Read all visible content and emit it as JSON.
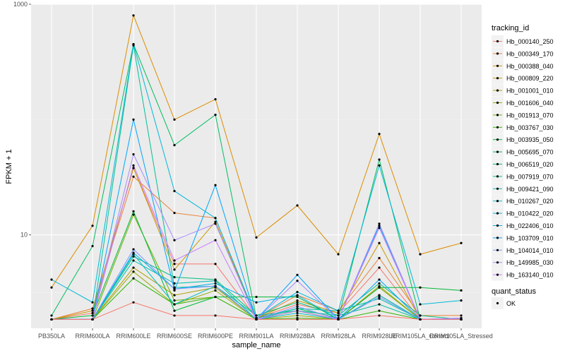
{
  "chart_data": {
    "type": "line",
    "title": "",
    "xlabel": "sample_name",
    "ylabel": "FPKM + 1",
    "y_scale": "log10",
    "ylim": [
      1.55,
      1000
    ],
    "y_ticks": [
      10,
      1000
    ],
    "y_tick_labels": [
      "10",
      "1000"
    ],
    "grid": true,
    "panel_background": "#ebebeb",
    "legend_position": "right",
    "categories": [
      "PB350LA",
      "RRIM600LA",
      "RRIM600LE",
      "RRIM600SE",
      "RRIM600PE",
      "RRIM901LA",
      "RRIM928BA",
      "RRIM928LA",
      "RRIM928LE",
      "RRIM105LA_Control",
      "RRIM105LA_Stressed"
    ],
    "legend": {
      "title": "tracking_id",
      "labels": [
        "Hb_000140_250",
        "Hb_000349_170",
        "Hb_000388_040",
        "Hb_000809_220",
        "Hb_001001_010",
        "Hb_001606_040",
        "Hb_001913_070",
        "Hb_003767_030",
        "Hb_003935_050",
        "Hb_005695_070",
        "Hb_006519_020",
        "Hb_007919_070",
        "Hb_009421_090",
        "Hb_010267_020",
        "Hb_010422_020",
        "Hb_022406_010",
        "Hb_103709_010",
        "Hb_104014_010",
        "Hb_149985_030",
        "Hb_163140_010"
      ],
      "colors": [
        "#F8766D",
        "#EC8239",
        "#DB8E00",
        "#C79800",
        "#AFA100",
        "#93AA00",
        "#6FB000",
        "#2FB600",
        "#00BA38",
        "#00BD5F",
        "#00BF7D",
        "#00C097",
        "#00C0AF",
        "#00BDC4",
        "#00B8D8",
        "#00B0EA",
        "#00A5FF",
        "#7997FF",
        "#A58AFF",
        "#C77CFF"
      ]
    },
    "shape_legend": {
      "title": "quant_status",
      "labels": [
        "OK"
      ]
    },
    "series": [
      {
        "name": "Hb_000140_250",
        "color": "#F8766D",
        "values": [
          1.85,
          2.1,
          38,
          5.6,
          5.6,
          1.9,
          2.5,
          2.1,
          5.2,
          1.85,
          1.85
        ]
      },
      {
        "name": "Hb_000349_170",
        "color": "#EC8239",
        "values": [
          1.85,
          2.3,
          32,
          15.5,
          14,
          1.9,
          3.0,
          2.2,
          6.3,
          2.0,
          2.0
        ]
      },
      {
        "name": "Hb_000388_040",
        "color": "#DB8E00",
        "values": [
          3.5,
          12,
          800,
          100,
          150,
          9.5,
          18,
          6.8,
          75,
          6.8,
          8.5
        ]
      },
      {
        "name": "Hb_000809_220",
        "color": "#C79800",
        "values": [
          1.85,
          2.2,
          38,
          5.0,
          13,
          1.9,
          2.7,
          2.1,
          8.5,
          1.85,
          1.85
        ]
      },
      {
        "name": "Hb_001001_010",
        "color": "#AFA100",
        "values": [
          1.85,
          1.85,
          5.2,
          3.0,
          3.5,
          1.85,
          2.2,
          1.85,
          3.6,
          1.85,
          1.85
        ]
      },
      {
        "name": "Hb_001606_040",
        "color": "#93AA00",
        "values": [
          1.85,
          1.85,
          4.8,
          2.5,
          3.3,
          1.85,
          2.0,
          1.85,
          3.0,
          1.85,
          1.85
        ]
      },
      {
        "name": "Hb_001913_070",
        "color": "#6FB000",
        "values": [
          1.85,
          1.85,
          15,
          2.7,
          2.9,
          1.85,
          2.2,
          1.85,
          3.5,
          1.85,
          1.85
        ]
      },
      {
        "name": "Hb_003767_030",
        "color": "#2FB600",
        "values": [
          1.85,
          1.85,
          4.2,
          2.5,
          2.9,
          1.85,
          1.9,
          1.85,
          2.2,
          1.85,
          1.85
        ]
      },
      {
        "name": "Hb_003935_050",
        "color": "#00BA38",
        "values": [
          1.85,
          2.0,
          16,
          2.2,
          2.9,
          2.9,
          2.9,
          1.85,
          3.5,
          3.5,
          3.3
        ]
      },
      {
        "name": "Hb_005695_070",
        "color": "#00BD5F",
        "values": [
          2.0,
          8.0,
          450,
          60,
          110,
          1.9,
          2.3,
          1.9,
          45,
          1.85,
          1.85
        ]
      },
      {
        "name": "Hb_006519_020",
        "color": "#00BF7D",
        "values": [
          1.85,
          1.85,
          6.5,
          4.3,
          4.1,
          2.0,
          2.6,
          2.0,
          3.8,
          2.0,
          1.85
        ]
      },
      {
        "name": "Hb_007919_070",
        "color": "#00C097",
        "values": [
          1.85,
          1.85,
          440,
          3.5,
          3.6,
          2.0,
          2.2,
          2.0,
          2.5,
          1.85,
          1.85
        ]
      },
      {
        "name": "Hb_009421_090",
        "color": "#00C0AF",
        "values": [
          1.85,
          1.85,
          6.0,
          3.8,
          4.0,
          1.85,
          2.3,
          2.2,
          2.8,
          1.85,
          1.85
        ]
      },
      {
        "name": "Hb_010267_020",
        "color": "#00BDC4",
        "values": [
          1.85,
          1.85,
          6.8,
          2.5,
          3.6,
          1.85,
          2.1,
          1.85,
          3.0,
          1.85,
          1.85
        ]
      },
      {
        "name": "Hb_010422_020",
        "color": "#00B8D8",
        "values": [
          4.1,
          2.6,
          450,
          24,
          14,
          1.9,
          3.2,
          2.2,
          40,
          2.5,
          2.7
        ]
      },
      {
        "name": "Hb_022406_010",
        "color": "#00B0EA",
        "values": [
          1.85,
          1.85,
          7.0,
          3.4,
          3.8,
          2.6,
          3.0,
          1.85,
          12,
          1.85,
          1.85
        ]
      },
      {
        "name": "Hb_103709_010",
        "color": "#00A5FF",
        "values": [
          1.85,
          1.85,
          100,
          3.3,
          27,
          1.85,
          4.5,
          1.85,
          4.1,
          1.85,
          1.85
        ]
      },
      {
        "name": "Hb_104014_010",
        "color": "#7997FF",
        "values": [
          1.85,
          1.85,
          7.5,
          3.4,
          3.6,
          1.85,
          2.4,
          1.85,
          2.9,
          1.85,
          1.85
        ]
      },
      {
        "name": "Hb_149985_030",
        "color": "#A58AFF",
        "values": [
          1.85,
          1.85,
          50,
          9.0,
          12.5,
          1.85,
          4.0,
          1.85,
          12.5,
          1.85,
          1.9
        ]
      },
      {
        "name": "Hb_163140_010",
        "color": "#C77CFF",
        "values": [
          1.85,
          1.85,
          40,
          6.0,
          9.0,
          1.85,
          2.2,
          1.85,
          11.5,
          1.85,
          1.9
        ]
      },
      {
        "name": "Hb_000140_250",
        "color": "#F8766D",
        "values": [
          1.85,
          1.85,
          2.6,
          2.0,
          2.0,
          1.85,
          1.85,
          1.85,
          2.0,
          1.85,
          1.85
        ]
      }
    ]
  }
}
